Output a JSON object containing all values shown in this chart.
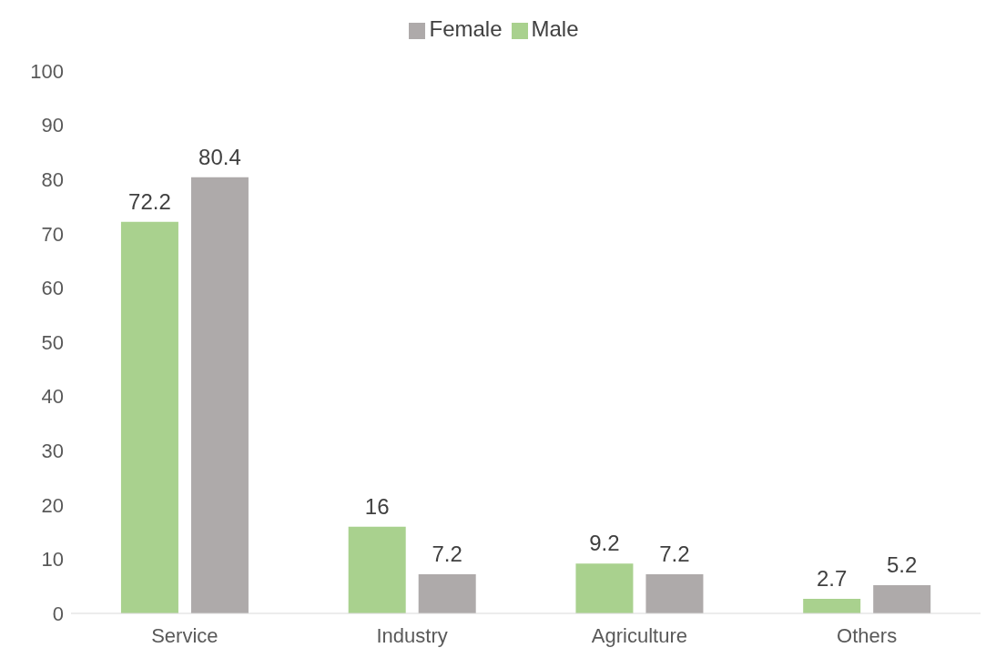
{
  "chart_data": {
    "type": "bar",
    "categories": [
      "Service",
      "Industry",
      "Agriculture",
      "Others"
    ],
    "series": [
      {
        "name": "Male",
        "color": "#a9d18e",
        "values": [
          72.2,
          16,
          9.2,
          2.7
        ]
      },
      {
        "name": "Female",
        "color": "#aeaaaa",
        "values": [
          80.4,
          7.2,
          7.2,
          5.2
        ]
      }
    ],
    "ylim": [
      0,
      100
    ],
    "yticks": [
      0,
      10,
      20,
      30,
      40,
      50,
      60,
      70,
      80,
      90,
      100
    ],
    "grid": false,
    "legend": "top",
    "data_labels": true
  }
}
